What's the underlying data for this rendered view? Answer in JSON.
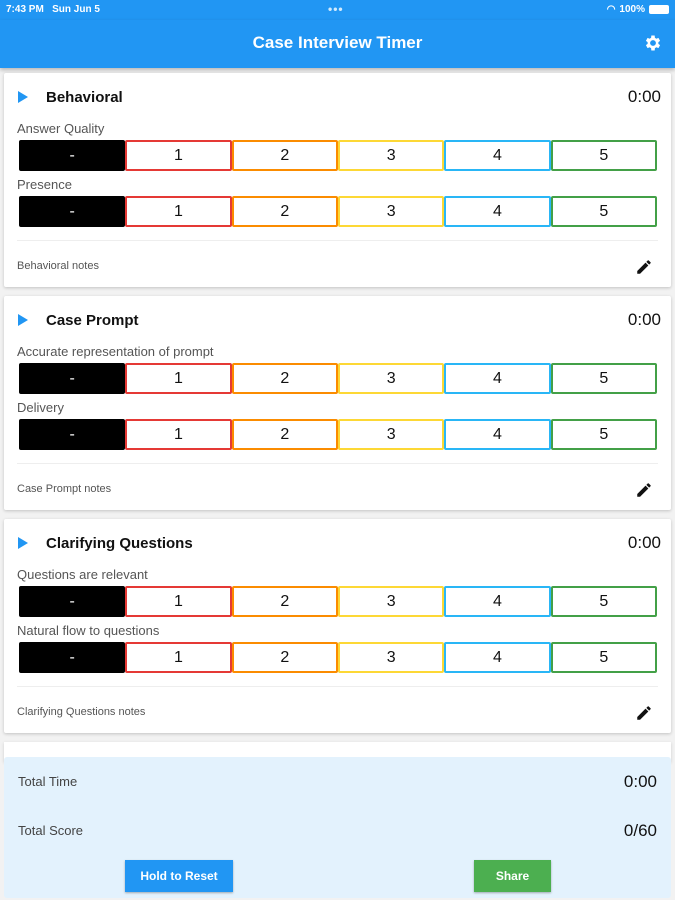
{
  "status": {
    "time": "7:43 PM",
    "date": "Sun Jun 5",
    "battery": "100%"
  },
  "appbar": {
    "title": "Case Interview Timer",
    "settings_icon": "gear-icon"
  },
  "colors": {
    "primary": "#2196F3",
    "score": [
      "#000000",
      "#E53935",
      "#FB8C00",
      "#FDD835",
      "#29B6F6",
      "#43A047"
    ],
    "share": "#4CAF50",
    "footer": "#E3F2FD"
  },
  "score_options": [
    "-",
    "1",
    "2",
    "3",
    "4",
    "5"
  ],
  "sections": [
    {
      "title": "Behavioral",
      "time": "0:00",
      "criteria": [
        "Answer Quality",
        "Presence"
      ],
      "notes": "Behavioral notes"
    },
    {
      "title": "Case Prompt",
      "time": "0:00",
      "criteria": [
        "Accurate representation of prompt",
        "Delivery"
      ],
      "notes": "Case Prompt notes"
    },
    {
      "title": "Clarifying Questions",
      "time": "0:00",
      "criteria": [
        "Questions are relevant",
        "Natural flow to questions"
      ],
      "notes": "Clarifying Questions notes"
    }
  ],
  "footer": {
    "total_time_label": "Total Time",
    "total_time": "0:00",
    "total_score_label": "Total Score",
    "total_score": "0/60",
    "reset_label": "Hold to Reset",
    "share_label": "Share"
  }
}
